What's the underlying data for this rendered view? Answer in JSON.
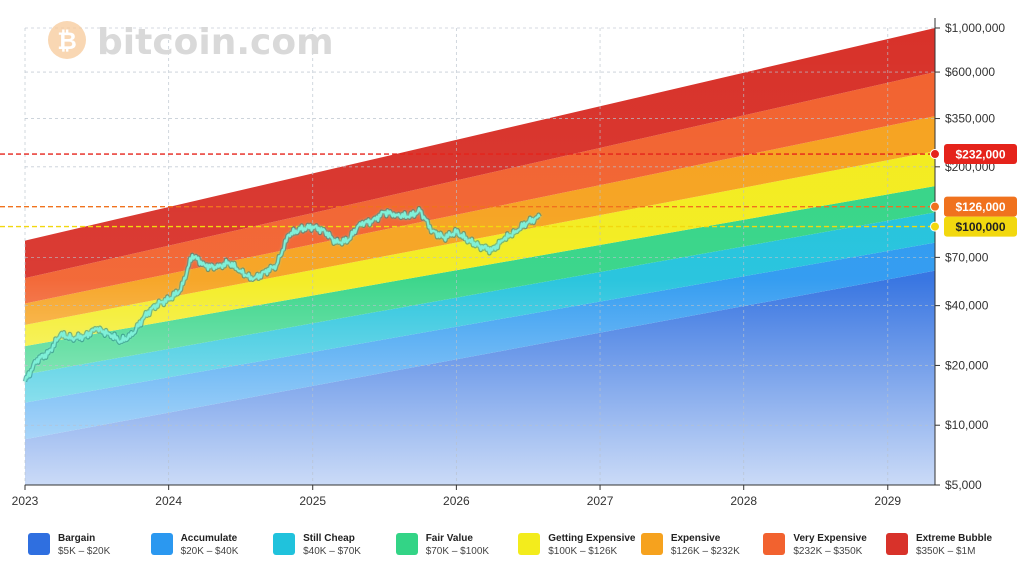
{
  "logo": {
    "text": "bitcoin.com",
    "symbol": "₿",
    "color": "#f7931a"
  },
  "chart_data": {
    "type": "area",
    "y_scale": "log",
    "ylim": [
      5000,
      1000000
    ],
    "xlim": [
      "2023-01-01",
      "2029-05-01"
    ],
    "x_ticks": [
      "2023",
      "2024",
      "2025",
      "2026",
      "2027",
      "2028",
      "2029"
    ],
    "y_ticks": [
      {
        "value": 1000000,
        "label": "$1,000,000"
      },
      {
        "value": 600000,
        "label": "$600,000"
      },
      {
        "value": 350000,
        "label": "$350,000"
      },
      {
        "value": 200000,
        "label": "$200,000"
      },
      {
        "value": 70000,
        "label": "$70,000"
      },
      {
        "value": 40000,
        "label": "$40,000"
      },
      {
        "value": 20000,
        "label": "$20,000"
      },
      {
        "value": 10000,
        "label": "$10,000"
      },
      {
        "value": 5000,
        "label": "$5,000"
      }
    ],
    "grid": true,
    "bands": [
      {
        "name": "Bargain",
        "range": "$5K – $20K",
        "color": "#2f6fe0"
      },
      {
        "name": "Accumulate",
        "range": "$20K – $40K",
        "color": "#2b98f0"
      },
      {
        "name": "Still Cheap",
        "range": "$40K – $70K",
        "color": "#20c2dc"
      },
      {
        "name": "Fair Value",
        "range": "$70K – $100K",
        "color": "#33d486"
      },
      {
        "name": "Getting Expensive",
        "range": "$100K – $126K",
        "color": "#f3ec1c"
      },
      {
        "name": "Expensive",
        "range": "$126K – $232K",
        "color": "#f6a21e"
      },
      {
        "name": "Very Expensive",
        "range": "$232K – $350K",
        "color": "#f2622f"
      },
      {
        "name": "Extreme Bubble",
        "range": "$350K – $1M",
        "color": "#d8322a"
      }
    ],
    "band_bounds_start": [
      5000,
      8500,
      13000,
      18000,
      25000,
      32000,
      41000,
      55000,
      85000
    ],
    "band_bounds_end": [
      5000,
      60000,
      83000,
      118000,
      160000,
      240000,
      360000,
      600000,
      1000000
    ],
    "levels": [
      {
        "value": 232000,
        "label": "$232,000",
        "color": "#e5231b"
      },
      {
        "value": 126000,
        "label": "$126,000",
        "color": "#f0721e"
      },
      {
        "value": 100000,
        "label": "$100,000",
        "color": "#f2d80f"
      }
    ],
    "series": [
      {
        "color": "#7ff0d8",
        "points": [
          [
            "2023-01-01",
            16600
          ],
          [
            "2023-02-01",
            21500
          ],
          [
            "2023-03-01",
            23000
          ],
          [
            "2023-04-01",
            28500
          ],
          [
            "2023-05-01",
            27500
          ],
          [
            "2023-06-01",
            28000
          ],
          [
            "2023-07-01",
            30500
          ],
          [
            "2023-08-01",
            29000
          ],
          [
            "2023-09-01",
            26500
          ],
          [
            "2023-10-01",
            28500
          ],
          [
            "2023-11-01",
            35500
          ],
          [
            "2023-12-01",
            40500
          ],
          [
            "2024-01-01",
            43000
          ],
          [
            "2024-02-01",
            48000
          ],
          [
            "2024-03-01",
            72000
          ],
          [
            "2024-04-01",
            64000
          ],
          [
            "2024-05-01",
            62000
          ],
          [
            "2024-06-01",
            66000
          ],
          [
            "2024-07-01",
            60000
          ],
          [
            "2024-08-01",
            54000
          ],
          [
            "2024-09-01",
            59000
          ],
          [
            "2024-10-01",
            64000
          ],
          [
            "2024-11-01",
            91000
          ],
          [
            "2024-12-01",
            97000
          ],
          [
            "2025-01-01",
            100000
          ],
          [
            "2025-02-01",
            95000
          ],
          [
            "2025-03-01",
            83000
          ],
          [
            "2025-04-01",
            85000
          ],
          [
            "2025-05-01",
            104000
          ],
          [
            "2025-06-01",
            106000
          ],
          [
            "2025-07-01",
            118000
          ],
          [
            "2025-08-01",
            115000
          ],
          [
            "2025-09-01",
            112000
          ],
          [
            "2025-10-01",
            120000
          ],
          [
            "2025-11-01",
            95000
          ],
          [
            "2025-12-01",
            88000
          ],
          [
            "2026-01-01",
            94000
          ],
          [
            "2026-02-01",
            85000
          ],
          [
            "2026-03-01",
            80000
          ],
          [
            "2026-04-01",
            76000
          ],
          [
            "2026-05-01",
            86000
          ],
          [
            "2026-06-01",
            95000
          ],
          [
            "2026-07-01",
            105000
          ],
          [
            "2026-08-01",
            112000
          ]
        ]
      }
    ],
    "legend": "bottom"
  }
}
